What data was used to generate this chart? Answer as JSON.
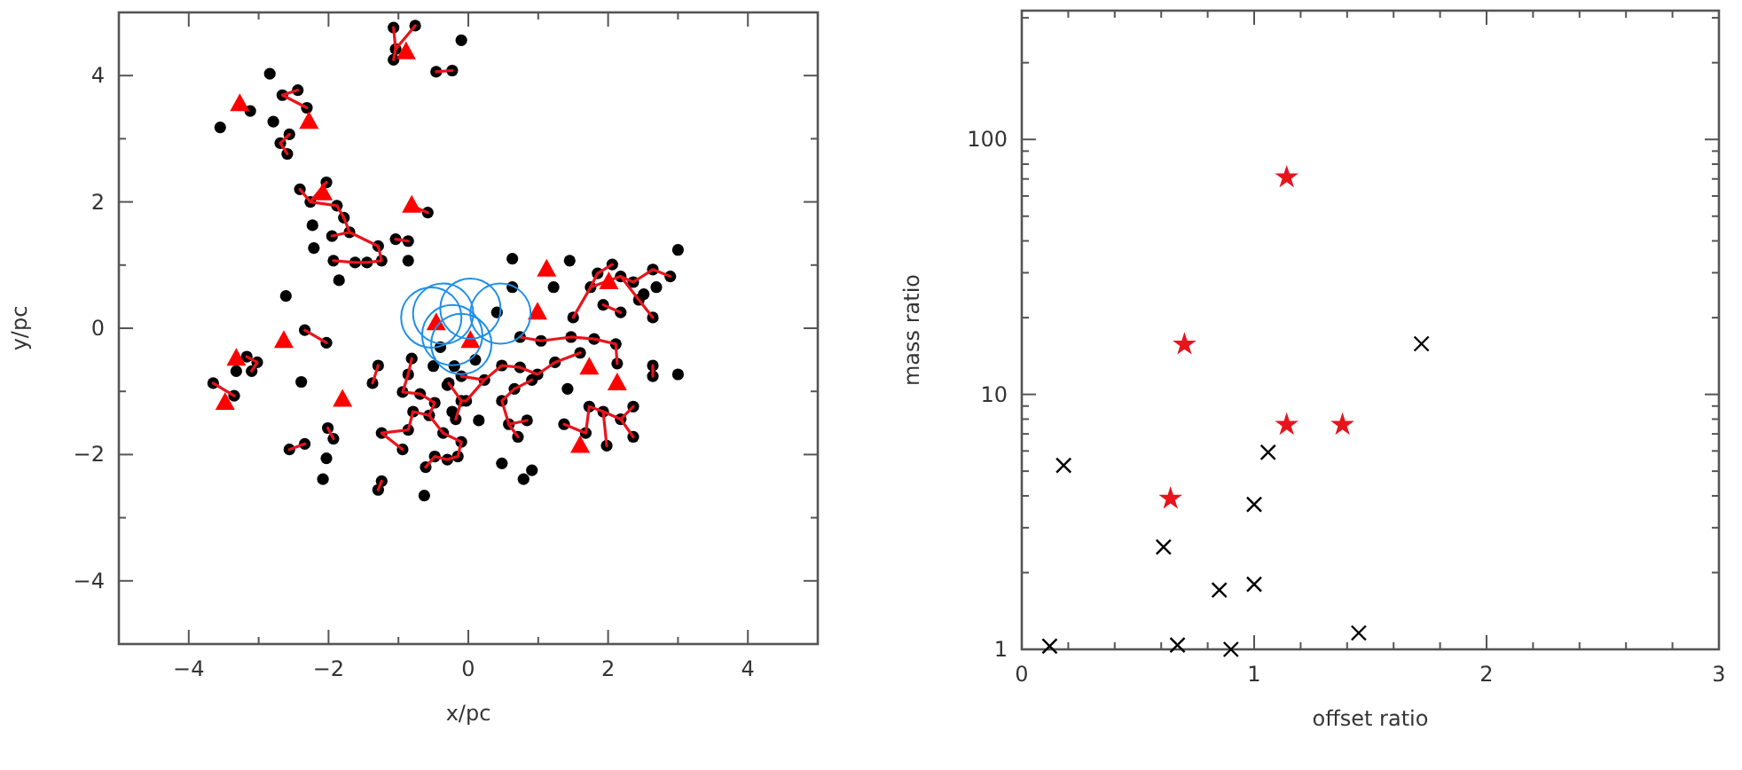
{
  "chart_data": [
    {
      "type": "scatter",
      "xlabel": "x/pc",
      "ylabel": "y/pc",
      "xlim": [
        -5,
        5
      ],
      "ylim": [
        -5,
        5
      ],
      "xticks": [
        {
          "value": -5,
          "label": null
        },
        -4,
        {
          "value": -3,
          "label": null
        },
        -2,
        {
          "value": -1,
          "label": null
        },
        0,
        {
          "value": 1,
          "label": null
        },
        2,
        {
          "value": 3,
          "label": null
        },
        4,
        {
          "value": 5,
          "label": null
        }
      ],
      "yticks": [
        {
          "value": -5,
          "label": null
        },
        -4,
        {
          "value": -3,
          "label": null
        },
        -2,
        {
          "value": -1,
          "label": null
        },
        0,
        {
          "value": 1,
          "label": null
        },
        2,
        {
          "value": 3,
          "label": null
        },
        4,
        {
          "value": 5,
          "label": null
        }
      ],
      "grid": false,
      "series": [
        {
          "marker": "circle",
          "color": "#000000",
          "x": [
            -1.07,
            -0.76,
            -1.04,
            -1.07,
            -0.1,
            -0.46,
            -0.23,
            -2.84,
            -2.66,
            -2.44,
            -2.31,
            -3.12,
            -3.55,
            -2.79,
            -2.56,
            -2.69,
            -2.59,
            -2.41,
            -2.26,
            -2.03,
            -1.88,
            -1.78,
            -2.23,
            -1.95,
            -1.7,
            -2.21,
            -1.93,
            -1.62,
            -1.45,
            -1.24,
            -1.29,
            -1.04,
            -0.86,
            -0.86,
            -0.58,
            -1.85,
            -2.61,
            -2.03,
            -2.34,
            0.63,
            1.45,
            3.0,
            0.63,
            1.22,
            0.41,
            0.74,
            1.04,
            1.47,
            1.85,
            2.06,
            2.18,
            2.36,
            2.64,
            2.89,
            2.51,
            1.75,
            1.93,
            2.18,
            2.44,
            2.64,
            2.69,
            1.5,
            -3.17,
            -3.02,
            -3.32,
            -3.1,
            -3.65,
            -3.35,
            -2.39,
            -1.29,
            -1.37,
            -0.81,
            -0.86,
            -0.94,
            -0.69,
            -0.48,
            -0.79,
            -0.56,
            -0.86,
            -0.36,
            -0.1,
            -0.15,
            -0.3,
            -0.48,
            -0.61,
            -1.24,
            -0.94,
            -2.01,
            -1.93,
            -2.56,
            -2.34,
            -2.03,
            -2.08,
            -1.24,
            -1.29,
            -0.63,
            -0.28,
            -0.1,
            -0.18,
            1.8,
            2.11,
            2.13,
            2.64,
            2.64,
            3.0,
            1.6,
            0.48,
            0.74,
            0.99,
            1.24,
            0.23,
            -0.1,
            -0.03,
            -0.23,
            0.15,
            0.48,
            0.66,
            0.91,
            1.42,
            0.58,
            0.84,
            0.71,
            1.37,
            1.73,
            1.93,
            2.18,
            2.36,
            2.36,
            1.98,
            1.68,
            0.48,
            0.79,
            0.91,
            -0.4,
            -0.2,
            -0.5,
            0.1,
            -0.3
          ],
          "values": [
            4.76,
            4.79,
            4.42,
            4.25,
            4.56,
            4.06,
            4.08,
            4.03,
            3.69,
            3.77,
            3.49,
            3.44,
            3.18,
            3.27,
            3.07,
            2.93,
            2.76,
            2.2,
            2.0,
            2.31,
            1.94,
            1.75,
            1.63,
            1.46,
            1.52,
            1.27,
            1.07,
            1.04,
            1.04,
            1.07,
            1.3,
            1.41,
            1.38,
            1.07,
            1.83,
            0.76,
            0.51,
            -0.23,
            -0.03,
            1.1,
            1.07,
            1.24,
            0.65,
            0.65,
            0.25,
            -0.14,
            -0.2,
            -0.14,
            0.87,
            1.01,
            0.82,
            0.73,
            0.93,
            0.82,
            0.54,
            0.65,
            0.37,
            0.25,
            0.45,
            0.17,
            0.65,
            0.17,
            -0.45,
            -0.54,
            -0.68,
            -0.68,
            -0.87,
            -1.07,
            -0.85,
            -0.59,
            -0.87,
            -0.48,
            -0.73,
            -1.01,
            -1.04,
            -1.18,
            -1.32,
            -1.38,
            -1.61,
            -1.66,
            -1.8,
            -2.03,
            -2.08,
            -2.03,
            -2.2,
            -1.66,
            -1.92,
            -1.58,
            -1.75,
            -1.92,
            -1.83,
            -2.06,
            -2.39,
            -2.42,
            -2.56,
            -2.65,
            -0.87,
            -1.15,
            -1.44,
            -0.17,
            -0.25,
            -0.56,
            -0.59,
            -0.76,
            -0.73,
            -0.39,
            -0.59,
            -0.62,
            -0.73,
            -0.54,
            -0.82,
            -0.76,
            -1.15,
            -1.32,
            -1.46,
            -1.15,
            -0.96,
            -0.82,
            -0.96,
            -1.52,
            -1.46,
            -1.72,
            -1.52,
            -1.24,
            -1.32,
            -1.44,
            -1.24,
            -1.72,
            -1.86,
            -1.66,
            -2.14,
            -2.39,
            -2.25,
            -0.3,
            -0.6,
            -0.6,
            -0.5,
            -0.9
          ]
        },
        {
          "type": "line",
          "color": "#e8141c",
          "x": [
            -1.07,
            -1.04,
            -1.07
          ],
          "values": [
            4.76,
            4.42,
            4.25
          ]
        },
        {
          "type": "line",
          "color": "#e8141c",
          "x": [
            -0.76,
            -1.04
          ],
          "values": [
            4.79,
            4.42
          ]
        },
        {
          "type": "line",
          "color": "#e8141c",
          "x": [
            -0.46,
            -0.23
          ],
          "values": [
            4.06,
            4.08
          ]
        },
        {
          "type": "line",
          "color": "#e8141c",
          "x": [
            -2.44,
            -2.66,
            -2.31
          ],
          "values": [
            3.77,
            3.69,
            3.49
          ]
        },
        {
          "type": "line",
          "color": "#e8141c",
          "x": [
            -2.56,
            -2.69,
            -2.59
          ],
          "values": [
            3.07,
            2.93,
            2.76
          ]
        },
        {
          "type": "line",
          "color": "#e8141c",
          "x": [
            -2.41,
            -2.26,
            -2.03
          ],
          "values": [
            2.2,
            2.0,
            2.31
          ]
        },
        {
          "type": "line",
          "color": "#e8141c",
          "x": [
            -2.26,
            -1.88,
            -1.78,
            -1.7,
            -1.95
          ],
          "values": [
            2.0,
            1.94,
            1.75,
            1.52,
            1.46
          ]
        },
        {
          "type": "line",
          "color": "#e8141c",
          "x": [
            -1.93,
            -1.62,
            -1.45,
            -1.24,
            -1.29,
            -1.7
          ],
          "values": [
            1.07,
            1.04,
            1.04,
            1.07,
            1.3,
            1.52
          ]
        },
        {
          "type": "line",
          "color": "#e8141c",
          "x": [
            -1.04,
            -0.86
          ],
          "values": [
            1.41,
            1.38
          ]
        },
        {
          "type": "line",
          "color": "#e8141c",
          "x": [
            -0.58,
            -0.81
          ],
          "values": [
            1.83,
            1.94
          ]
        },
        {
          "type": "line",
          "color": "#e8141c",
          "x": [
            -2.03,
            -2.34
          ],
          "values": [
            -0.23,
            -0.03
          ]
        },
        {
          "type": "line",
          "color": "#e8141c",
          "x": [
            -3.17,
            -3.02,
            -3.1
          ],
          "values": [
            -0.45,
            -0.54,
            -0.68
          ]
        },
        {
          "type": "line",
          "color": "#e8141c",
          "x": [
            -3.65,
            -3.35
          ],
          "values": [
            -0.87,
            -1.07
          ]
        },
        {
          "type": "line",
          "color": "#e8141c",
          "x": [
            -1.29,
            -1.37
          ],
          "values": [
            -0.59,
            -0.87
          ]
        },
        {
          "type": "line",
          "color": "#e8141c",
          "x": [
            -2.56,
            -2.34
          ],
          "values": [
            -1.92,
            -1.83
          ]
        },
        {
          "type": "line",
          "color": "#e8141c",
          "x": [
            -2.01,
            -1.93
          ],
          "values": [
            -1.58,
            -1.75
          ]
        },
        {
          "type": "line",
          "color": "#e8141c",
          "x": [
            -1.24,
            -1.29
          ],
          "values": [
            -2.42,
            -2.56
          ]
        },
        {
          "type": "line",
          "color": "#e8141c",
          "x": [
            -0.81,
            -0.86,
            -0.94,
            -0.69,
            -0.48,
            -0.56,
            -0.79,
            -0.86,
            -1.24,
            -0.94
          ],
          "values": [
            -0.48,
            -0.73,
            -1.01,
            -1.04,
            -1.18,
            -1.38,
            -1.32,
            -1.61,
            -1.66,
            -1.92
          ]
        },
        {
          "type": "line",
          "color": "#e8141c",
          "x": [
            -0.56,
            -0.36,
            -0.1,
            -0.15,
            -0.3,
            -0.48,
            -0.61
          ],
          "values": [
            -1.38,
            -1.66,
            -1.8,
            -2.03,
            -2.08,
            -2.03,
            -2.2
          ]
        },
        {
          "type": "line",
          "color": "#e8141c",
          "x": [
            -0.28,
            -0.1,
            -0.18
          ],
          "values": [
            -0.87,
            -1.15,
            -1.44
          ]
        },
        {
          "type": "line",
          "color": "#e8141c",
          "x": [
            -0.1,
            -0.03,
            0.23,
            0.48,
            0.74,
            0.99,
            1.24,
            1.6
          ],
          "values": [
            -1.15,
            -1.15,
            -0.82,
            -0.59,
            -0.62,
            -0.73,
            -0.54,
            -0.39
          ]
        },
        {
          "type": "line",
          "color": "#e8141c",
          "x": [
            0.23,
            -0.1
          ],
          "values": [
            -0.82,
            -0.76
          ]
        },
        {
          "type": "line",
          "color": "#e8141c",
          "x": [
            0.91,
            0.66,
            0.48,
            0.58,
            0.71
          ],
          "values": [
            -0.82,
            -0.96,
            -1.15,
            -1.52,
            -1.72
          ]
        },
        {
          "type": "line",
          "color": "#e8141c",
          "x": [
            0.58,
            0.84
          ],
          "values": [
            -1.52,
            -1.46
          ]
        },
        {
          "type": "line",
          "color": "#e8141c",
          "x": [
            1.37,
            1.68,
            1.73,
            1.93,
            2.18,
            2.36
          ],
          "values": [
            -1.52,
            -1.66,
            -1.24,
            -1.32,
            -1.44,
            -1.24
          ]
        },
        {
          "type": "line",
          "color": "#e8141c",
          "x": [
            2.18,
            2.36
          ],
          "values": [
            -1.44,
            -1.72
          ]
        },
        {
          "type": "line",
          "color": "#e8141c",
          "x": [
            1.93,
            1.98
          ],
          "values": [
            -1.32,
            -1.86
          ]
        },
        {
          "type": "line",
          "color": "#e8141c",
          "x": [
            0.74,
            1.04,
            1.47,
            1.8,
            2.11,
            2.13
          ],
          "values": [
            -0.14,
            -0.2,
            -0.14,
            -0.17,
            -0.25,
            -0.56
          ]
        },
        {
          "type": "line",
          "color": "#e8141c",
          "x": [
            2.64,
            2.64
          ],
          "values": [
            -0.59,
            -0.76
          ]
        },
        {
          "type": "line",
          "color": "#e8141c",
          "x": [
            1.5,
            1.75,
            1.85,
            2.06
          ],
          "values": [
            0.17,
            0.65,
            0.87,
            1.01
          ]
        },
        {
          "type": "line",
          "color": "#e8141c",
          "x": [
            1.75,
            2.18,
            2.36,
            2.64,
            2.89
          ],
          "values": [
            0.65,
            0.82,
            0.73,
            0.93,
            0.82
          ]
        },
        {
          "type": "line",
          "color": "#e8141c",
          "x": [
            2.18,
            2.44,
            2.64
          ],
          "values": [
            0.82,
            0.45,
            0.17
          ]
        },
        {
          "type": "line",
          "color": "#e8141c",
          "x": [
            1.93,
            2.18
          ],
          "values": [
            0.37,
            0.25
          ]
        },
        {
          "marker": "triangle",
          "color": "#ff0000",
          "x": [
            -3.27,
            -2.28,
            -2.08,
            -0.81,
            -0.89,
            -0.46,
            -2.64,
            0.03,
            1.12,
            0.99,
            2.01,
            -3.32,
            -3.48,
            -1.8,
            1.73,
            2.13,
            1.6
          ],
          "values": [
            3.55,
            3.27,
            2.14,
            1.94,
            4.37,
            0.08,
            -0.2,
            -0.2,
            0.93,
            0.25,
            0.73,
            -0.48,
            -1.18,
            -1.13,
            -0.62,
            -0.87,
            -1.86
          ]
        },
        {
          "type": "bubble",
          "color": "#1e8fe8",
          "x": [
            -0.53,
            -0.36,
            0.03,
            0.46,
            -0.23,
            -0.1
          ],
          "values": [
            0.17,
            0.23,
            0.31,
            0.23,
            -0.11,
            -0.25
          ],
          "sizes": [
            1,
            1,
            1,
            1,
            1,
            1
          ]
        }
      ]
    },
    {
      "type": "scatter",
      "xlabel": "offset ratio",
      "ylabel": "mass ratio",
      "log": "y",
      "xlim": [
        0,
        3
      ],
      "ylim": [
        1,
        320
      ],
      "xticks": [
        0,
        {
          "value": 0.2,
          "label": null
        },
        {
          "value": 0.4,
          "label": null
        },
        {
          "value": 0.6,
          "label": null
        },
        {
          "value": 0.8,
          "label": null
        },
        1,
        {
          "value": 1.2,
          "label": null
        },
        {
          "value": 1.4,
          "label": null
        },
        {
          "value": 1.6,
          "label": null
        },
        {
          "value": 1.8,
          "label": null
        },
        2,
        {
          "value": 2.2,
          "label": null
        },
        {
          "value": 2.4,
          "label": null
        },
        {
          "value": 2.6,
          "label": null
        },
        {
          "value": 2.8,
          "label": null
        },
        3
      ],
      "yticks": [
        1,
        {
          "value": 2,
          "label": null
        },
        {
          "value": 3,
          "label": null
        },
        {
          "value": 4,
          "label": null
        },
        {
          "value": 5,
          "label": null
        },
        {
          "value": 6,
          "label": null
        },
        {
          "value": 7,
          "label": null
        },
        {
          "value": 8,
          "label": null
        },
        {
          "value": 9,
          "label": null
        },
        10,
        {
          "value": 20,
          "label": null
        },
        {
          "value": 30,
          "label": null
        },
        {
          "value": 40,
          "label": null
        },
        {
          "value": 50,
          "label": null
        },
        {
          "value": 60,
          "label": null
        },
        {
          "value": 70,
          "label": null
        },
        {
          "value": 80,
          "label": null
        },
        {
          "value": 90,
          "label": null
        },
        100,
        {
          "value": 200,
          "label": null
        },
        {
          "value": 300,
          "label": null
        }
      ],
      "grid": false,
      "series": [
        {
          "marker": "cross",
          "color": "#000000",
          "x": [
            0.12,
            0.18,
            0.61,
            0.67,
            0.85,
            0.9,
            1.0,
            1.0,
            1.06,
            1.45,
            1.72
          ],
          "values": [
            1.03,
            5.27,
            2.52,
            1.04,
            1.71,
            1.0,
            1.8,
            3.7,
            5.93,
            1.16,
            15.8
          ]
        },
        {
          "marker": "star",
          "color": "#e8141c",
          "x": [
            0.64,
            0.7,
            1.14,
            1.14,
            1.38
          ],
          "values": [
            3.9,
            15.7,
            71,
            7.6,
            7.6
          ]
        }
      ]
    }
  ]
}
